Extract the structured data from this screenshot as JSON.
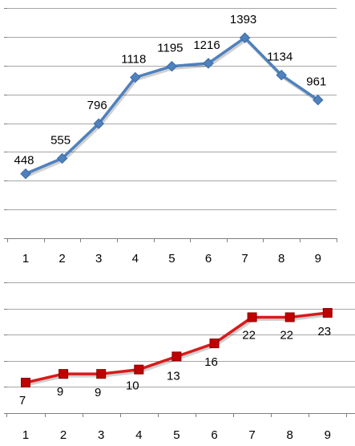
{
  "chart_data": [
    {
      "type": "line",
      "x": [
        1,
        2,
        3,
        4,
        5,
        6,
        7,
        8,
        9
      ],
      "series": [
        {
          "values": [
            448,
            555,
            796,
            1118,
            1195,
            1216,
            1393,
            1134,
            961
          ],
          "color": "#4f81bd",
          "marker": "diamond"
        }
      ],
      "ylim": [
        0,
        1600
      ],
      "grid": true,
      "tick_labels": [
        "1",
        "2",
        "3",
        "4",
        "5",
        "6",
        "7",
        "8",
        "9"
      ],
      "data_labels": [
        "448",
        "555",
        "796",
        "1118",
        "1195",
        "1216",
        "1393",
        "1134",
        "961"
      ]
    },
    {
      "type": "line",
      "x": [
        1,
        2,
        3,
        4,
        5,
        6,
        7,
        8,
        9
      ],
      "series": [
        {
          "values": [
            7,
            9,
            9,
            10,
            13,
            16,
            22,
            22,
            23
          ],
          "color": "#d91b1b",
          "marker": "square"
        }
      ],
      "ylim": [
        0,
        30
      ],
      "grid": true,
      "tick_labels": [
        "1",
        "2",
        "3",
        "4",
        "5",
        "6",
        "7",
        "8",
        "9"
      ],
      "data_labels": [
        "7",
        "9",
        "9",
        "10",
        "13",
        "16",
        "22",
        "22",
        "23"
      ]
    }
  ]
}
